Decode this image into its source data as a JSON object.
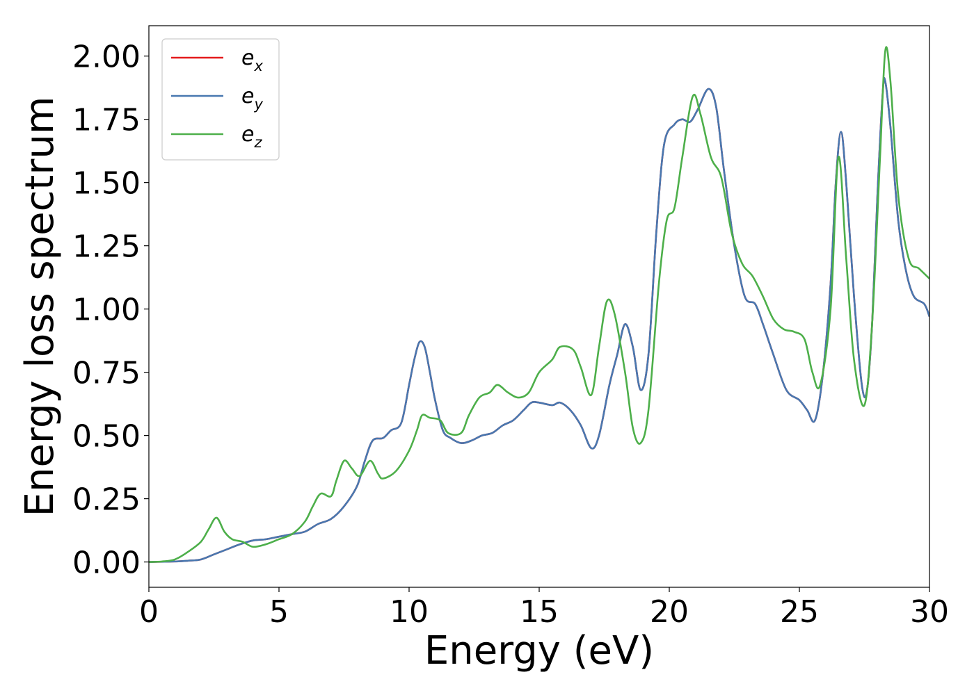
{
  "chart_data": {
    "type": "line",
    "title": "",
    "xlabel": "Energy (eV)",
    "ylabel": "Energy loss spectrum",
    "xlim": [
      0,
      30
    ],
    "ylim": [
      -0.1,
      2.12
    ],
    "xticks": [
      0,
      5,
      10,
      15,
      20,
      25,
      30
    ],
    "xtick_labels": [
      "0",
      "5",
      "10",
      "15",
      "20",
      "25",
      "30"
    ],
    "yticks": [
      0,
      0.25,
      0.5,
      0.75,
      1.0,
      1.25,
      1.5,
      1.75,
      2.0
    ],
    "ytick_labels": [
      "0.00",
      "0.25",
      "0.50",
      "0.75",
      "1.00",
      "1.25",
      "1.50",
      "1.75",
      "2.00"
    ],
    "grid": false,
    "legend_position": "top-left",
    "series": [
      {
        "name": "e",
        "subscript": "x",
        "color": "#e41a1c",
        "points": [
          [
            0,
            0
          ],
          [
            1,
            0.002
          ],
          [
            1.5,
            0.005
          ],
          [
            2,
            0.01
          ],
          [
            2.5,
            0.03
          ],
          [
            3,
            0.05
          ],
          [
            3.5,
            0.07
          ],
          [
            4,
            0.085
          ],
          [
            4.5,
            0.09
          ],
          [
            5,
            0.1
          ],
          [
            5.5,
            0.11
          ],
          [
            6,
            0.12
          ],
          [
            6.5,
            0.15
          ],
          [
            7,
            0.17
          ],
          [
            7.5,
            0.22
          ],
          [
            8,
            0.3
          ],
          [
            8.3,
            0.4
          ],
          [
            8.6,
            0.48
          ],
          [
            9,
            0.49
          ],
          [
            9.3,
            0.52
          ],
          [
            9.7,
            0.55
          ],
          [
            10,
            0.7
          ],
          [
            10.2,
            0.8
          ],
          [
            10.4,
            0.87
          ],
          [
            10.6,
            0.85
          ],
          [
            10.8,
            0.75
          ],
          [
            11,
            0.64
          ],
          [
            11.3,
            0.52
          ],
          [
            11.6,
            0.49
          ],
          [
            12,
            0.47
          ],
          [
            12.4,
            0.48
          ],
          [
            12.8,
            0.5
          ],
          [
            13.2,
            0.51
          ],
          [
            13.6,
            0.54
          ],
          [
            14,
            0.56
          ],
          [
            14.4,
            0.6
          ],
          [
            14.7,
            0.63
          ],
          [
            15,
            0.63
          ],
          [
            15.5,
            0.62
          ],
          [
            15.8,
            0.63
          ],
          [
            16.2,
            0.6
          ],
          [
            16.6,
            0.54
          ],
          [
            17,
            0.45
          ],
          [
            17.3,
            0.5
          ],
          [
            17.7,
            0.7
          ],
          [
            18,
            0.82
          ],
          [
            18.3,
            0.94
          ],
          [
            18.6,
            0.85
          ],
          [
            18.9,
            0.68
          ],
          [
            19.2,
            0.82
          ],
          [
            19.5,
            1.3
          ],
          [
            19.8,
            1.65
          ],
          [
            20.2,
            1.73
          ],
          [
            20.5,
            1.75
          ],
          [
            20.8,
            1.74
          ],
          [
            21.1,
            1.79
          ],
          [
            21.5,
            1.87
          ],
          [
            21.8,
            1.8
          ],
          [
            22.1,
            1.55
          ],
          [
            22.5,
            1.25
          ],
          [
            22.9,
            1.05
          ],
          [
            23.3,
            1.02
          ],
          [
            23.6,
            0.94
          ],
          [
            24,
            0.82
          ],
          [
            24.5,
            0.68
          ],
          [
            25,
            0.64
          ],
          [
            25.3,
            0.6
          ],
          [
            25.6,
            0.56
          ],
          [
            25.9,
            0.74
          ],
          [
            26.2,
            1.1
          ],
          [
            26.4,
            1.5
          ],
          [
            26.6,
            1.7
          ],
          [
            26.8,
            1.5
          ],
          [
            27.1,
            1.05
          ],
          [
            27.4,
            0.7
          ],
          [
            27.6,
            0.68
          ],
          [
            27.8,
            0.95
          ],
          [
            28,
            1.45
          ],
          [
            28.2,
            1.85
          ],
          [
            28.3,
            1.9
          ],
          [
            28.5,
            1.72
          ],
          [
            28.8,
            1.35
          ],
          [
            29.1,
            1.15
          ],
          [
            29.4,
            1.05
          ],
          [
            29.8,
            1.02
          ],
          [
            30,
            0.97
          ]
        ]
      },
      {
        "name": "e",
        "subscript": "y",
        "color": "#4878b0",
        "points": [
          [
            0,
            0
          ],
          [
            1,
            0.002
          ],
          [
            1.5,
            0.005
          ],
          [
            2,
            0.01
          ],
          [
            2.5,
            0.03
          ],
          [
            3,
            0.05
          ],
          [
            3.5,
            0.07
          ],
          [
            4,
            0.085
          ],
          [
            4.5,
            0.09
          ],
          [
            5,
            0.1
          ],
          [
            5.5,
            0.11
          ],
          [
            6,
            0.12
          ],
          [
            6.5,
            0.15
          ],
          [
            7,
            0.17
          ],
          [
            7.5,
            0.22
          ],
          [
            8,
            0.3
          ],
          [
            8.3,
            0.4
          ],
          [
            8.6,
            0.48
          ],
          [
            9,
            0.49
          ],
          [
            9.3,
            0.52
          ],
          [
            9.7,
            0.55
          ],
          [
            10,
            0.7
          ],
          [
            10.2,
            0.8
          ],
          [
            10.4,
            0.87
          ],
          [
            10.6,
            0.85
          ],
          [
            10.8,
            0.75
          ],
          [
            11,
            0.64
          ],
          [
            11.3,
            0.52
          ],
          [
            11.6,
            0.49
          ],
          [
            12,
            0.47
          ],
          [
            12.4,
            0.48
          ],
          [
            12.8,
            0.5
          ],
          [
            13.2,
            0.51
          ],
          [
            13.6,
            0.54
          ],
          [
            14,
            0.56
          ],
          [
            14.4,
            0.6
          ],
          [
            14.7,
            0.63
          ],
          [
            15,
            0.63
          ],
          [
            15.5,
            0.62
          ],
          [
            15.8,
            0.63
          ],
          [
            16.2,
            0.6
          ],
          [
            16.6,
            0.54
          ],
          [
            17,
            0.45
          ],
          [
            17.3,
            0.5
          ],
          [
            17.7,
            0.7
          ],
          [
            18,
            0.82
          ],
          [
            18.3,
            0.94
          ],
          [
            18.6,
            0.85
          ],
          [
            18.9,
            0.68
          ],
          [
            19.2,
            0.82
          ],
          [
            19.5,
            1.3
          ],
          [
            19.8,
            1.65
          ],
          [
            20.2,
            1.73
          ],
          [
            20.5,
            1.75
          ],
          [
            20.8,
            1.74
          ],
          [
            21.1,
            1.79
          ],
          [
            21.5,
            1.87
          ],
          [
            21.8,
            1.8
          ],
          [
            22.1,
            1.55
          ],
          [
            22.5,
            1.25
          ],
          [
            22.9,
            1.05
          ],
          [
            23.3,
            1.02
          ],
          [
            23.6,
            0.94
          ],
          [
            24,
            0.82
          ],
          [
            24.5,
            0.68
          ],
          [
            25,
            0.64
          ],
          [
            25.3,
            0.6
          ],
          [
            25.6,
            0.56
          ],
          [
            25.9,
            0.74
          ],
          [
            26.2,
            1.1
          ],
          [
            26.4,
            1.5
          ],
          [
            26.6,
            1.7
          ],
          [
            26.8,
            1.5
          ],
          [
            27.1,
            1.05
          ],
          [
            27.4,
            0.7
          ],
          [
            27.6,
            0.68
          ],
          [
            27.8,
            0.95
          ],
          [
            28,
            1.45
          ],
          [
            28.2,
            1.85
          ],
          [
            28.3,
            1.9
          ],
          [
            28.5,
            1.72
          ],
          [
            28.8,
            1.35
          ],
          [
            29.1,
            1.15
          ],
          [
            29.4,
            1.05
          ],
          [
            29.8,
            1.02
          ],
          [
            30,
            0.97
          ]
        ]
      },
      {
        "name": "e",
        "subscript": "z",
        "color": "#4daf4a",
        "points": [
          [
            0,
            0
          ],
          [
            0.5,
            0.002
          ],
          [
            1,
            0.01
          ],
          [
            1.5,
            0.04
          ],
          [
            2,
            0.08
          ],
          [
            2.3,
            0.13
          ],
          [
            2.6,
            0.175
          ],
          [
            2.9,
            0.12
          ],
          [
            3.2,
            0.09
          ],
          [
            3.6,
            0.08
          ],
          [
            4,
            0.06
          ],
          [
            4.5,
            0.07
          ],
          [
            5,
            0.09
          ],
          [
            5.5,
            0.11
          ],
          [
            6,
            0.16
          ],
          [
            6.3,
            0.22
          ],
          [
            6.6,
            0.27
          ],
          [
            7,
            0.26
          ],
          [
            7.2,
            0.32
          ],
          [
            7.5,
            0.4
          ],
          [
            7.8,
            0.37
          ],
          [
            8.1,
            0.34
          ],
          [
            8.5,
            0.4
          ],
          [
            8.8,
            0.35
          ],
          [
            9,
            0.33
          ],
          [
            9.5,
            0.36
          ],
          [
            10,
            0.44
          ],
          [
            10.3,
            0.52
          ],
          [
            10.5,
            0.58
          ],
          [
            10.8,
            0.57
          ],
          [
            11.2,
            0.56
          ],
          [
            11.5,
            0.51
          ],
          [
            12,
            0.51
          ],
          [
            12.3,
            0.58
          ],
          [
            12.7,
            0.65
          ],
          [
            13.1,
            0.67
          ],
          [
            13.4,
            0.7
          ],
          [
            13.8,
            0.67
          ],
          [
            14.2,
            0.65
          ],
          [
            14.6,
            0.67
          ],
          [
            15,
            0.75
          ],
          [
            15.5,
            0.8
          ],
          [
            15.8,
            0.85
          ],
          [
            16.3,
            0.84
          ],
          [
            16.6,
            0.77
          ],
          [
            17,
            0.66
          ],
          [
            17.3,
            0.85
          ],
          [
            17.6,
            1.03
          ],
          [
            17.9,
            0.98
          ],
          [
            18.3,
            0.75
          ],
          [
            18.6,
            0.53
          ],
          [
            18.9,
            0.47
          ],
          [
            19.2,
            0.6
          ],
          [
            19.6,
            1.1
          ],
          [
            19.9,
            1.35
          ],
          [
            20.2,
            1.4
          ],
          [
            20.5,
            1.6
          ],
          [
            20.9,
            1.84
          ],
          [
            21.2,
            1.77
          ],
          [
            21.6,
            1.6
          ],
          [
            22,
            1.52
          ],
          [
            22.4,
            1.3
          ],
          [
            22.8,
            1.18
          ],
          [
            23.2,
            1.13
          ],
          [
            23.6,
            1.05
          ],
          [
            24,
            0.96
          ],
          [
            24.4,
            0.92
          ],
          [
            24.8,
            0.91
          ],
          [
            25.2,
            0.88
          ],
          [
            25.5,
            0.75
          ],
          [
            25.8,
            0.7
          ],
          [
            26.2,
            1.0
          ],
          [
            26.5,
            1.6
          ],
          [
            26.8,
            1.2
          ],
          [
            27.1,
            0.8
          ],
          [
            27.5,
            0.62
          ],
          [
            27.8,
            0.95
          ],
          [
            28.1,
            1.6
          ],
          [
            28.3,
            2.02
          ],
          [
            28.5,
            1.9
          ],
          [
            28.8,
            1.45
          ],
          [
            29.2,
            1.2
          ],
          [
            29.6,
            1.16
          ],
          [
            30,
            1.12
          ]
        ]
      }
    ]
  }
}
